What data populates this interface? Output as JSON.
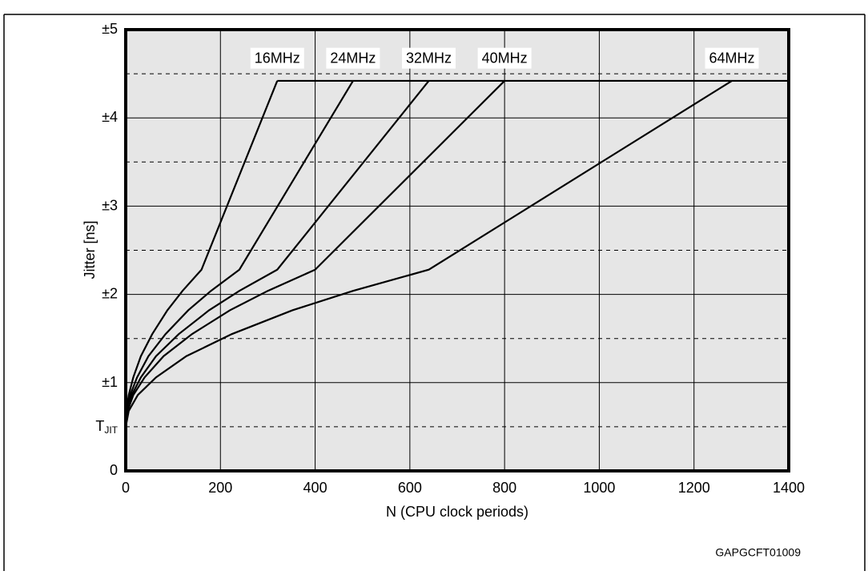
{
  "chart_data": {
    "type": "line",
    "xlabel": "N (CPU clock periods)",
    "ylabel": "Jitter [ns]",
    "figure_id": "GAPGCFT01009",
    "xlim": [
      0,
      1400
    ],
    "xticks": [
      0,
      200,
      400,
      600,
      800,
      1000,
      1200,
      1400
    ],
    "ylim": [
      0,
      5
    ],
    "yticks": [
      0,
      {
        "value": 0.5,
        "label": "T",
        "label_sub": "JIT"
      },
      {
        "value": 1,
        "label": "±1"
      },
      {
        "value": 2,
        "label": "±2"
      },
      {
        "value": 3,
        "label": "±3"
      },
      {
        "value": 4,
        "label": "±4"
      },
      {
        "value": 5,
        "label": "±5"
      }
    ],
    "minor_yticks": [
      0.5,
      1.5,
      2.5,
      3.5,
      4.5
    ],
    "grid": true,
    "color": "#000000",
    "series": [
      {
        "name": "16MHz",
        "x": [
          0,
          1.6,
          6.4,
          16,
          32,
          56,
          88,
          120,
          160,
          320
        ],
        "values": [
          0.5,
          0.68,
          0.86,
          1.06,
          1.3,
          1.55,
          1.82,
          2.04,
          2.28,
          4.42
        ]
      },
      {
        "name": "24MHz",
        "x": [
          0,
          2.4,
          9.6,
          24,
          48,
          84,
          132,
          180,
          240,
          480
        ],
        "values": [
          0.5,
          0.68,
          0.86,
          1.06,
          1.3,
          1.55,
          1.82,
          2.04,
          2.28,
          4.42
        ]
      },
      {
        "name": "32MHz",
        "x": [
          0,
          3.2,
          12.8,
          32,
          64,
          112,
          176,
          240,
          320,
          640
        ],
        "values": [
          0.5,
          0.68,
          0.86,
          1.06,
          1.3,
          1.55,
          1.82,
          2.04,
          2.28,
          4.42
        ]
      },
      {
        "name": "40MHz",
        "x": [
          0,
          4,
          16,
          40,
          80,
          140,
          220,
          300,
          400,
          800
        ],
        "values": [
          0.5,
          0.68,
          0.86,
          1.06,
          1.3,
          1.55,
          1.82,
          2.04,
          2.28,
          4.42
        ]
      },
      {
        "name": "64MHz",
        "x": [
          0,
          6.4,
          25.6,
          64,
          128,
          224,
          352,
          480,
          640,
          1280
        ],
        "values": [
          0.5,
          0.68,
          0.86,
          1.06,
          1.3,
          1.55,
          1.82,
          2.04,
          2.28,
          4.42
        ]
      }
    ],
    "limit": {
      "x": [
        320,
        1400
      ],
      "values": [
        4.42,
        4.42
      ]
    }
  }
}
